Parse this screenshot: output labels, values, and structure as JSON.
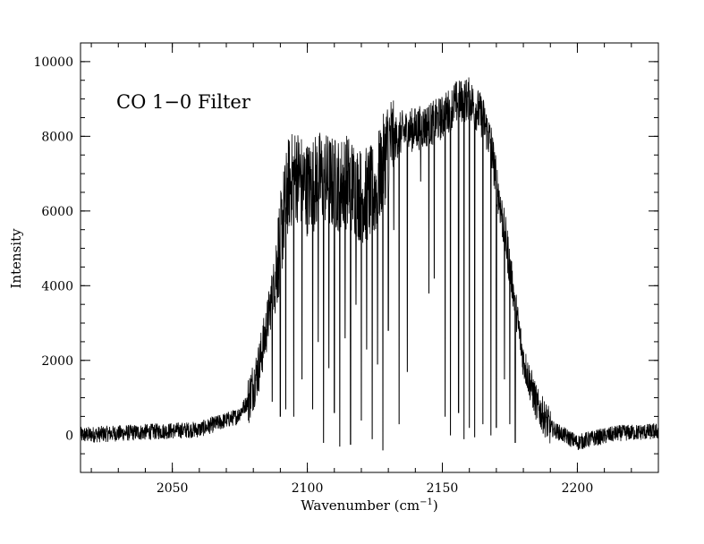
{
  "chart_data": {
    "type": "line",
    "title": "",
    "annotation": "CO 1−0 Filter",
    "xlabel": "Wavenumber (cm",
    "xlabel_superscript": "−1",
    "xlabel_suffix": ")",
    "ylabel": "Intensity",
    "xlim": [
      2016,
      2230
    ],
    "ylim": [
      -1000,
      10500
    ],
    "x_major_ticks": [
      2050,
      2100,
      2150,
      2200
    ],
    "x_tick_labels": [
      "2050",
      "2100",
      "2150",
      "2200"
    ],
    "x_minor_step": 10,
    "y_major_ticks": [
      0,
      2000,
      4000,
      6000,
      8000,
      10000
    ],
    "y_tick_labels": [
      "0",
      "2000",
      "4000",
      "6000",
      "8000",
      "10000"
    ],
    "y_minor_step": 500,
    "grid": false,
    "legend": "none",
    "line_color": "#000000",
    "series": [
      {
        "x_start": 2016,
        "x_end": 2230,
        "envelope": {
          "x": [
            2016,
            2060,
            2074,
            2078,
            2082,
            2085,
            2088,
            2091,
            2093,
            2096,
            2100,
            2105,
            2110,
            2115,
            2120,
            2125,
            2130,
            2135,
            2140,
            2145,
            2150,
            2155,
            2160,
            2165,
            2168,
            2170,
            2172,
            2174,
            2176,
            2178,
            2180,
            2185,
            2190,
            2195,
            2200,
            2205,
            2215,
            2230
          ],
          "y": [
            0,
            150,
            500,
            900,
            1800,
            2900,
            4200,
            5800,
            6700,
            7000,
            6600,
            6900,
            6700,
            6800,
            6400,
            6500,
            7800,
            8100,
            8200,
            8300,
            8500,
            8900,
            9000,
            8500,
            7800,
            6800,
            5900,
            5000,
            4000,
            3000,
            2000,
            800,
            200,
            0,
            -200,
            -100,
            50,
            100
          ]
        },
        "absorption_lines": [
          {
            "x": 2087,
            "y": 900
          },
          {
            "x": 2090,
            "y": 500
          },
          {
            "x": 2092,
            "y": 700
          },
          {
            "x": 2095,
            "y": 500
          },
          {
            "x": 2098,
            "y": 1500
          },
          {
            "x": 2102,
            "y": 700
          },
          {
            "x": 2104,
            "y": 2500
          },
          {
            "x": 2106,
            "y": -200
          },
          {
            "x": 2108,
            "y": 1800
          },
          {
            "x": 2110,
            "y": 600
          },
          {
            "x": 2112,
            "y": -300
          },
          {
            "x": 2114,
            "y": 2600
          },
          {
            "x": 2116,
            "y": -250
          },
          {
            "x": 2118,
            "y": 3500
          },
          {
            "x": 2120,
            "y": 400
          },
          {
            "x": 2122,
            "y": 2300
          },
          {
            "x": 2124,
            "y": -100
          },
          {
            "x": 2126,
            "y": 1900
          },
          {
            "x": 2128,
            "y": -400
          },
          {
            "x": 2130,
            "y": 2800
          },
          {
            "x": 2132,
            "y": 5500
          },
          {
            "x": 2134,
            "y": 300
          },
          {
            "x": 2137,
            "y": 1700
          },
          {
            "x": 2142,
            "y": 6800
          },
          {
            "x": 2145,
            "y": 3800
          },
          {
            "x": 2147,
            "y": 4200
          },
          {
            "x": 2151,
            "y": 500
          },
          {
            "x": 2153,
            "y": 0
          },
          {
            "x": 2156,
            "y": 600
          },
          {
            "x": 2158,
            "y": -100
          },
          {
            "x": 2160,
            "y": 200
          },
          {
            "x": 2162,
            "y": -50
          },
          {
            "x": 2165,
            "y": 300
          },
          {
            "x": 2168,
            "y": 0
          },
          {
            "x": 2170,
            "y": 200
          },
          {
            "x": 2173,
            "y": 1500
          },
          {
            "x": 2175,
            "y": 300
          },
          {
            "x": 2177,
            "y": -200
          }
        ]
      }
    ]
  }
}
